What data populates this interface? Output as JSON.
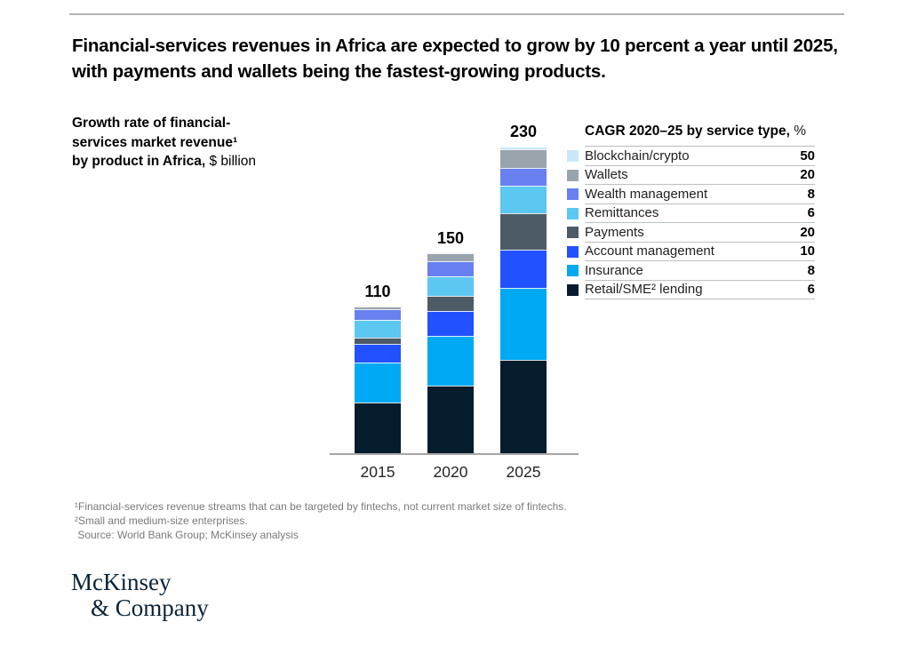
{
  "header": {
    "title": "Financial-services revenues in Africa are expected to grow by 10 percent a year until 2025, with payments and wallets being the fastest-growing products."
  },
  "chart": {
    "label_bold": "Growth rate of financial-\nservices market revenue¹\nby product in Africa,",
    "label_unit": " $ billion"
  },
  "legend": {
    "title_bold": "CAGR 2020–25 by service type,",
    "title_unit": " %",
    "rows": [
      {
        "label": "Blockchain/crypto",
        "value": "50",
        "color": "#C9E8FA"
      },
      {
        "label": "Wallets",
        "value": "20",
        "color": "#9AA4AC"
      },
      {
        "label": "Wealth management",
        "value": "8",
        "color": "#6980F0"
      },
      {
        "label": "Remittances",
        "value": "6",
        "color": "#5CC7F0"
      },
      {
        "label": "Payments",
        "value": "20",
        "color": "#4D5B66"
      },
      {
        "label": "Account management",
        "value": "10",
        "color": "#2251FF"
      },
      {
        "label": "Insurance",
        "value": "8",
        "color": "#00A9F4"
      },
      {
        "label": "Retail/SME² lending",
        "value": "6",
        "color": "#051C2C"
      }
    ]
  },
  "chart_data": {
    "type": "bar",
    "stacked": true,
    "title": "Growth rate of financial-services market revenue by product in Africa, $ billion",
    "categories": [
      "2015",
      "2020",
      "2025"
    ],
    "totals": [
      110,
      150,
      230
    ],
    "series": [
      {
        "name": "Retail/SME lending",
        "color": "#051C2C",
        "values": [
          38,
          51,
          70
        ],
        "cagr_2020_25_pct": 6
      },
      {
        "name": "Insurance",
        "color": "#00A9F4",
        "values": [
          30,
          37,
          54
        ],
        "cagr_2020_25_pct": 8
      },
      {
        "name": "Account management",
        "color": "#2251FF",
        "values": [
          14,
          19,
          29
        ],
        "cagr_2020_25_pct": 10
      },
      {
        "name": "Payments",
        "color": "#4D5B66",
        "values": [
          5,
          11,
          27
        ],
        "cagr_2020_25_pct": 20
      },
      {
        "name": "Remittances",
        "color": "#5CC7F0",
        "values": [
          13,
          15,
          21
        ],
        "cagr_2020_25_pct": 6
      },
      {
        "name": "Wealth management",
        "color": "#6980F0",
        "values": [
          8,
          11,
          13
        ],
        "cagr_2020_25_pct": 8
      },
      {
        "name": "Wallets",
        "color": "#9AA4AC",
        "values": [
          2,
          6,
          14
        ],
        "cagr_2020_25_pct": 20
      },
      {
        "name": "Blockchain/crypto",
        "color": "#C9E8FA",
        "values": [
          0,
          0,
          2
        ],
        "cagr_2020_25_pct": 50
      }
    ],
    "ylim": [
      0,
      240
    ],
    "unit": "$ billion",
    "grid": false,
    "legend_position": "right"
  },
  "footer": {
    "notes": [
      "¹Financial-services revenue streams that can be targeted by fintechs, not current market size of fintechs.",
      "²Small and medium-size enterprises.",
      " Source: World Bank Group; McKinsey analysis"
    ],
    "logo_line1": "McKinsey",
    "logo_line2": "& Company"
  }
}
